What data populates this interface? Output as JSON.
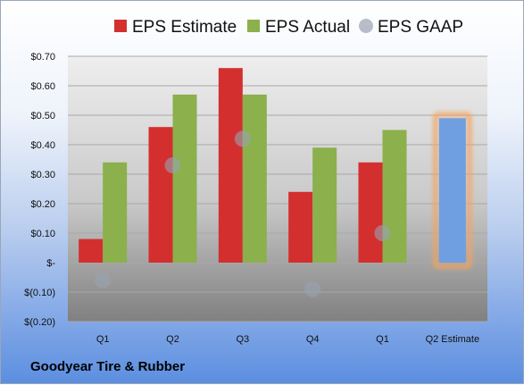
{
  "company": "Goodyear Tire & Rubber",
  "chart_data": {
    "type": "bar",
    "categories": [
      "Q1",
      "Q2",
      "Q3",
      "Q4",
      "Q1",
      "Q2 Estimate"
    ],
    "series": [
      {
        "name": "EPS Estimate",
        "color": "#d32f2f",
        "values": [
          0.08,
          0.46,
          0.66,
          0.24,
          0.34,
          null
        ]
      },
      {
        "name": "EPS Actual",
        "color": "#8bb04c",
        "values": [
          0.34,
          0.57,
          0.57,
          0.39,
          0.45,
          null
        ]
      },
      {
        "name": "EPS GAAP",
        "color": "#9aa3b0",
        "marker": "circle",
        "values": [
          -0.06,
          0.33,
          0.42,
          -0.09,
          0.1,
          null
        ]
      }
    ],
    "forecast": {
      "category": "Q2 Estimate",
      "value": 0.49,
      "color": "#6f9fe0",
      "glow": "#f4a460"
    },
    "yticks": [
      "$0.70",
      "$0.60",
      "$0.50",
      "$0.40",
      "$0.30",
      "$0.20",
      "$0.10",
      "$-",
      "$(0.10)",
      "$(0.20)"
    ],
    "ylim": [
      -0.2,
      0.7
    ],
    "grid": true,
    "legend": "top"
  }
}
